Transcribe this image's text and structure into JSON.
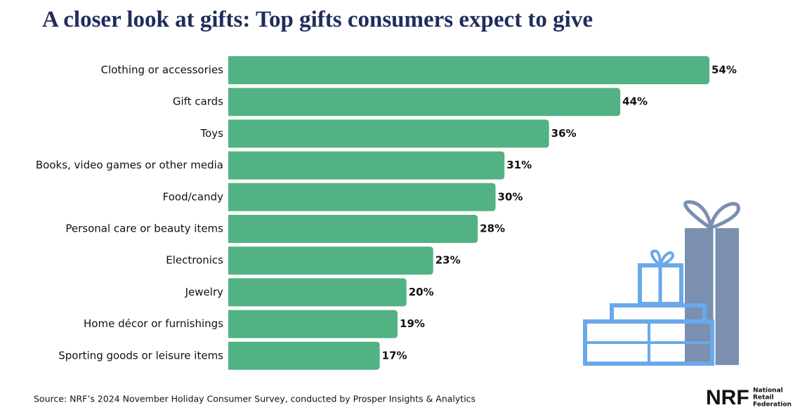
{
  "chart_data": {
    "type": "hbar",
    "title": "A closer look at gifts: Top gifts consumers expect to give",
    "categories": [
      "Clothing or accessories",
      "Gift cards",
      "Toys",
      "Books, video games or other media",
      "Food/candy",
      "Personal care or beauty items",
      "Electronics",
      "Jewelry",
      "Home décor or furnishings",
      "Sporting goods or leisure items"
    ],
    "values": [
      54,
      44,
      36,
      31,
      30,
      28,
      23,
      20,
      19,
      17
    ],
    "value_labels": [
      "54%",
      "44%",
      "36%",
      "31%",
      "30%",
      "28%",
      "23%",
      "20%",
      "19%",
      "17%"
    ],
    "color": "#52b283",
    "source": "Source: NRF’s 2024 November Holiday Consumer Survey, conducted by Prosper Insights & Analytics"
  },
  "logo": {
    "mark": "NRF",
    "name": [
      "National",
      "Retail",
      "Federation"
    ]
  }
}
